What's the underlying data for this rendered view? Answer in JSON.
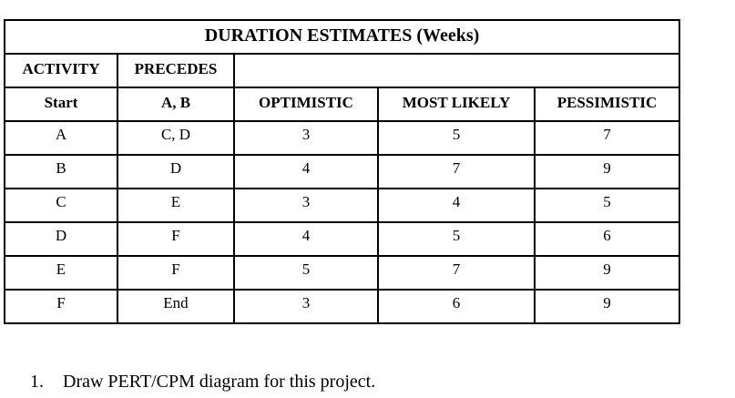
{
  "colors": {
    "background": "#ffffff",
    "border": "#000000",
    "text": "#000000"
  },
  "table": {
    "title": "DURATION ESTIMATES (Weeks)",
    "headers": {
      "activity": "ACTIVITY",
      "precedes": "PRECEDES"
    },
    "subheaders": [
      "Start",
      "A, B",
      "OPTIMISTIC",
      "MOST LIKELY",
      "PESSIMISTIC"
    ],
    "rows": [
      [
        "A",
        "C, D",
        "3",
        "5",
        "7"
      ],
      [
        "B",
        "D",
        "4",
        "7",
        "9"
      ],
      [
        "C",
        "E",
        "3",
        "4",
        "5"
      ],
      [
        "D",
        "F",
        "4",
        "5",
        "6"
      ],
      [
        "E",
        "F",
        "5",
        "7",
        "9"
      ],
      [
        "F",
        "End",
        "3",
        "6",
        "9"
      ]
    ]
  },
  "questions": [
    {
      "number": "1.",
      "text": "Draw PERT/CPM diagram for this project."
    }
  ]
}
